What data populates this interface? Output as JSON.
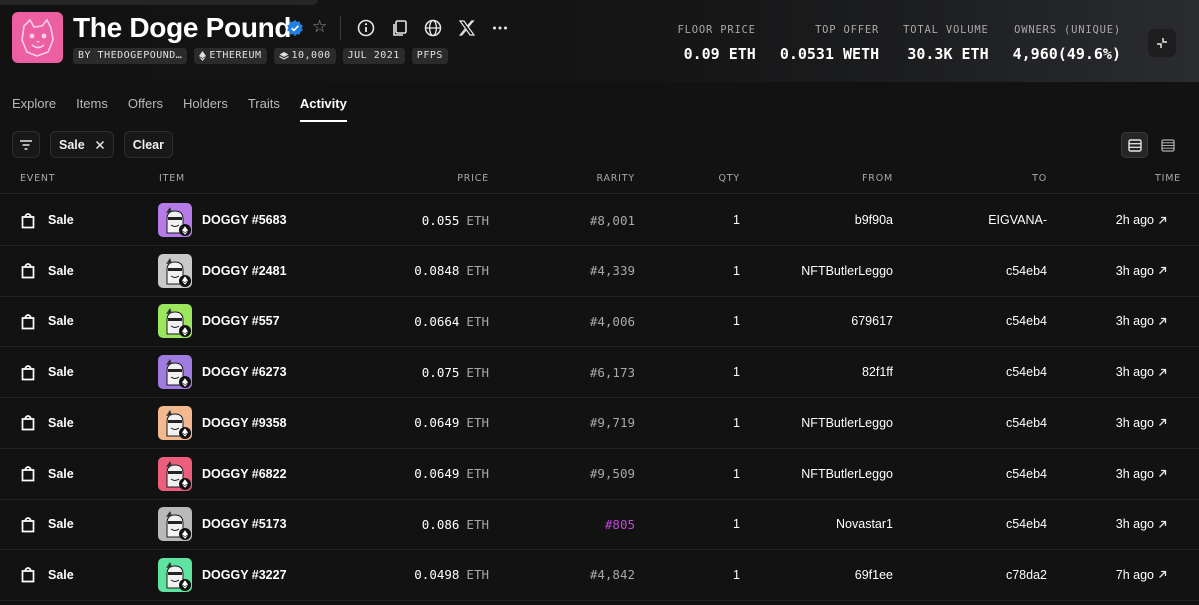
{
  "collection": {
    "name": "The Doge Pound",
    "badges": [
      {
        "label": "BY THEDOGEPOUND…",
        "icon": ""
      },
      {
        "label": "ETHEREUM",
        "icon": "ethereum-icon"
      },
      {
        "label": "10,000",
        "icon": "stack-icon"
      },
      {
        "label": "JUL 2021",
        "icon": ""
      },
      {
        "label": "PFPS",
        "icon": ""
      }
    ],
    "logo_color": "#ec5fa3"
  },
  "header_icons": [
    "info-icon",
    "copy-icon",
    "globe-icon",
    "x-icon",
    "more-icon"
  ],
  "stats": [
    {
      "label": "FLOOR PRICE",
      "value": "0.09 ETH"
    },
    {
      "label": "TOP OFFER",
      "value": "0.0531 WETH"
    },
    {
      "label": "TOTAL VOLUME",
      "value": "30.3K ETH"
    },
    {
      "label": "OWNERS (UNIQUE)",
      "value": "4,960(49.6%)"
    }
  ],
  "tabs": [
    {
      "label": "Explore",
      "active": false
    },
    {
      "label": "Items",
      "active": false
    },
    {
      "label": "Offers",
      "active": false
    },
    {
      "label": "Holders",
      "active": false
    },
    {
      "label": "Traits",
      "active": false
    },
    {
      "label": "Activity",
      "active": true
    }
  ],
  "filters": {
    "chip_label": "Sale",
    "clear_label": "Clear"
  },
  "table": {
    "headers": {
      "event": "EVENT",
      "item": "ITEM",
      "price": "PRICE",
      "rarity": "RARITY",
      "qty": "QTY",
      "from": "FROM",
      "to": "TO",
      "time": "TIME"
    },
    "rows": [
      {
        "event": "Sale",
        "item": "DOGGY #5683",
        "thumb": "#b57be6",
        "price": "0.055",
        "unit": "ETH",
        "rarity": "#8,001",
        "rare": false,
        "qty": "1",
        "from": "b9f90a",
        "to": "EIGVANA-",
        "time": "2h ago"
      },
      {
        "event": "Sale",
        "item": "DOGGY #2481",
        "thumb": "#c9c9c9",
        "price": "0.0848",
        "unit": "ETH",
        "rarity": "#4,339",
        "rare": false,
        "qty": "1",
        "from": "NFTButlerLeggo",
        "to": "c54eb4",
        "time": "3h ago"
      },
      {
        "event": "Sale",
        "item": "DOGGY #557",
        "thumb": "#9be65c",
        "price": "0.0664",
        "unit": "ETH",
        "rarity": "#4,006",
        "rare": false,
        "qty": "1",
        "from": "679617",
        "to": "c54eb4",
        "time": "3h ago"
      },
      {
        "event": "Sale",
        "item": "DOGGY #6273",
        "thumb": "#a07be0",
        "price": "0.075",
        "unit": "ETH",
        "rarity": "#6,173",
        "rare": false,
        "qty": "1",
        "from": "82f1ff",
        "to": "c54eb4",
        "time": "3h ago"
      },
      {
        "event": "Sale",
        "item": "DOGGY #9358",
        "thumb": "#f2b88f",
        "price": "0.0649",
        "unit": "ETH",
        "rarity": "#9,719",
        "rare": false,
        "qty": "1",
        "from": "NFTButlerLeggo",
        "to": "c54eb4",
        "time": "3h ago"
      },
      {
        "event": "Sale",
        "item": "DOGGY #6822",
        "thumb": "#ec5f7c",
        "price": "0.0649",
        "unit": "ETH",
        "rarity": "#9,509",
        "rare": false,
        "qty": "1",
        "from": "NFTButlerLeggo",
        "to": "c54eb4",
        "time": "3h ago"
      },
      {
        "event": "Sale",
        "item": "DOGGY #5173",
        "thumb": "#b9b9b9",
        "price": "0.086",
        "unit": "ETH",
        "rarity": "#805",
        "rare": true,
        "qty": "1",
        "from": "Novastar1",
        "to": "c54eb4",
        "time": "3h ago"
      },
      {
        "event": "Sale",
        "item": "DOGGY #3227",
        "thumb": "#5fe3a0",
        "price": "0.0498",
        "unit": "ETH",
        "rarity": "#4,842",
        "rare": false,
        "qty": "1",
        "from": "69f1ee",
        "to": "c78da2",
        "time": "7h ago"
      }
    ]
  }
}
